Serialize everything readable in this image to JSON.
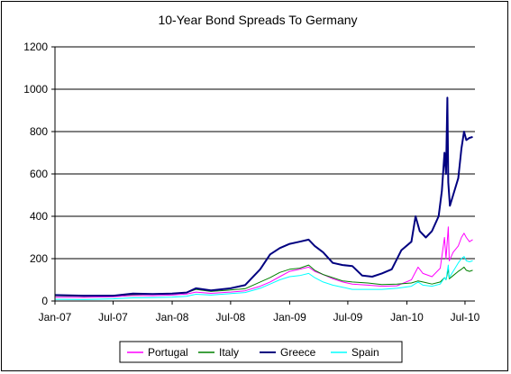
{
  "chart_data": {
    "type": "line",
    "title": "10-Year Bond Spreads To Germany",
    "xlabel": "",
    "ylabel": "",
    "ylim": [
      0,
      1200
    ],
    "yticks": [
      "0",
      "200",
      "400",
      "600",
      "800",
      "1000",
      "1200"
    ],
    "x_ticks": [
      "Jan-07",
      "Jul-07",
      "Jan-08",
      "Jul-08",
      "Jan-09",
      "Jul-09",
      "Jan-10",
      "Jul-10"
    ],
    "x_range": [
      "2007-01-01",
      "2010-08-01"
    ],
    "grid": "horizontal",
    "legend_position": "bottom",
    "series": [
      {
        "name": "Portugal",
        "color": "#ff00ff",
        "points": [
          [
            "2007-01-01",
            18
          ],
          [
            "2007-04-01",
            17
          ],
          [
            "2007-07-01",
            20
          ],
          [
            "2007-09-01",
            26
          ],
          [
            "2007-11-01",
            25
          ],
          [
            "2008-01-01",
            28
          ],
          [
            "2008-02-15",
            33
          ],
          [
            "2008-03-15",
            42
          ],
          [
            "2008-05-01",
            36
          ],
          [
            "2008-07-01",
            42
          ],
          [
            "2008-08-15",
            48
          ],
          [
            "2008-10-01",
            70
          ],
          [
            "2008-11-01",
            90
          ],
          [
            "2008-12-01",
            115
          ],
          [
            "2009-01-01",
            140
          ],
          [
            "2009-02-01",
            150
          ],
          [
            "2009-03-01",
            160
          ],
          [
            "2009-03-20",
            140
          ],
          [
            "2009-04-15",
            125
          ],
          [
            "2009-05-15",
            105
          ],
          [
            "2009-06-15",
            90
          ],
          [
            "2009-07-15",
            80
          ],
          [
            "2009-09-01",
            75
          ],
          [
            "2009-10-15",
            70
          ],
          [
            "2009-12-01",
            72
          ],
          [
            "2010-01-15",
            100
          ],
          [
            "2010-02-05",
            160
          ],
          [
            "2010-02-20",
            130
          ],
          [
            "2010-03-20",
            115
          ],
          [
            "2010-04-15",
            155
          ],
          [
            "2010-04-28",
            300
          ],
          [
            "2010-05-03",
            200
          ],
          [
            "2010-05-10",
            350
          ],
          [
            "2010-05-13",
            190
          ],
          [
            "2010-05-25",
            230
          ],
          [
            "2010-06-10",
            260
          ],
          [
            "2010-06-20",
            300
          ],
          [
            "2010-06-28",
            320
          ],
          [
            "2010-07-05",
            300
          ],
          [
            "2010-07-15",
            280
          ],
          [
            "2010-07-25",
            290
          ]
        ]
      },
      {
        "name": "Italy",
        "color": "#008000",
        "points": [
          [
            "2007-01-01",
            25
          ],
          [
            "2007-04-01",
            22
          ],
          [
            "2007-07-01",
            25
          ],
          [
            "2007-09-01",
            30
          ],
          [
            "2007-11-01",
            32
          ],
          [
            "2008-01-01",
            35
          ],
          [
            "2008-02-15",
            40
          ],
          [
            "2008-03-15",
            55
          ],
          [
            "2008-05-01",
            45
          ],
          [
            "2008-07-01",
            52
          ],
          [
            "2008-08-15",
            58
          ],
          [
            "2008-10-01",
            90
          ],
          [
            "2008-11-01",
            110
          ],
          [
            "2008-12-01",
            135
          ],
          [
            "2009-01-01",
            150
          ],
          [
            "2009-02-01",
            155
          ],
          [
            "2009-03-01",
            170
          ],
          [
            "2009-03-20",
            145
          ],
          [
            "2009-04-15",
            125
          ],
          [
            "2009-05-15",
            110
          ],
          [
            "2009-06-15",
            95
          ],
          [
            "2009-07-15",
            90
          ],
          [
            "2009-09-01",
            85
          ],
          [
            "2009-10-15",
            78
          ],
          [
            "2009-12-01",
            80
          ],
          [
            "2010-01-15",
            85
          ],
          [
            "2010-02-05",
            95
          ],
          [
            "2010-02-20",
            90
          ],
          [
            "2010-03-20",
            80
          ],
          [
            "2010-04-15",
            90
          ],
          [
            "2010-04-28",
            110
          ],
          [
            "2010-05-03",
            100
          ],
          [
            "2010-05-10",
            150
          ],
          [
            "2010-05-13",
            105
          ],
          [
            "2010-05-25",
            120
          ],
          [
            "2010-06-10",
            140
          ],
          [
            "2010-06-20",
            150
          ],
          [
            "2010-06-28",
            160
          ],
          [
            "2010-07-05",
            145
          ],
          [
            "2010-07-15",
            140
          ],
          [
            "2010-07-25",
            145
          ]
        ]
      },
      {
        "name": "Greece",
        "color": "#000080",
        "points": [
          [
            "2007-01-01",
            28
          ],
          [
            "2007-04-01",
            25
          ],
          [
            "2007-07-01",
            25
          ],
          [
            "2007-09-01",
            35
          ],
          [
            "2007-11-01",
            33
          ],
          [
            "2008-01-01",
            35
          ],
          [
            "2008-02-15",
            40
          ],
          [
            "2008-03-15",
            60
          ],
          [
            "2008-05-01",
            50
          ],
          [
            "2008-07-01",
            60
          ],
          [
            "2008-08-15",
            75
          ],
          [
            "2008-10-01",
            150
          ],
          [
            "2008-11-01",
            220
          ],
          [
            "2008-12-01",
            250
          ],
          [
            "2009-01-01",
            270
          ],
          [
            "2009-02-01",
            280
          ],
          [
            "2009-03-01",
            290
          ],
          [
            "2009-03-20",
            260
          ],
          [
            "2009-04-15",
            230
          ],
          [
            "2009-05-15",
            180
          ],
          [
            "2009-06-15",
            170
          ],
          [
            "2009-07-15",
            165
          ],
          [
            "2009-08-15",
            120
          ],
          [
            "2009-09-15",
            115
          ],
          [
            "2009-10-15",
            130
          ],
          [
            "2009-11-15",
            150
          ],
          [
            "2009-12-15",
            240
          ],
          [
            "2010-01-15",
            280
          ],
          [
            "2010-01-28",
            400
          ],
          [
            "2010-02-10",
            330
          ],
          [
            "2010-03-01",
            300
          ],
          [
            "2010-03-20",
            330
          ],
          [
            "2010-04-10",
            400
          ],
          [
            "2010-04-20",
            520
          ],
          [
            "2010-04-28",
            700
          ],
          [
            "2010-05-03",
            600
          ],
          [
            "2010-05-07",
            960
          ],
          [
            "2010-05-10",
            560
          ],
          [
            "2010-05-15",
            450
          ],
          [
            "2010-05-25",
            500
          ],
          [
            "2010-06-10",
            580
          ],
          [
            "2010-06-20",
            720
          ],
          [
            "2010-06-28",
            800
          ],
          [
            "2010-07-05",
            760
          ],
          [
            "2010-07-15",
            770
          ],
          [
            "2010-07-25",
            775
          ]
        ]
      },
      {
        "name": "Spain",
        "color": "#00ffff",
        "points": [
          [
            "2007-01-01",
            8
          ],
          [
            "2007-04-01",
            7
          ],
          [
            "2007-07-01",
            10
          ],
          [
            "2007-09-01",
            15
          ],
          [
            "2007-11-01",
            16
          ],
          [
            "2008-01-01",
            18
          ],
          [
            "2008-02-15",
            22
          ],
          [
            "2008-03-15",
            32
          ],
          [
            "2008-05-01",
            28
          ],
          [
            "2008-07-01",
            35
          ],
          [
            "2008-08-15",
            40
          ],
          [
            "2008-10-01",
            60
          ],
          [
            "2008-11-01",
            80
          ],
          [
            "2008-12-01",
            100
          ],
          [
            "2009-01-01",
            115
          ],
          [
            "2009-02-01",
            120
          ],
          [
            "2009-03-01",
            130
          ],
          [
            "2009-03-20",
            110
          ],
          [
            "2009-04-15",
            90
          ],
          [
            "2009-05-15",
            75
          ],
          [
            "2009-06-15",
            65
          ],
          [
            "2009-07-15",
            55
          ],
          [
            "2009-09-01",
            55
          ],
          [
            "2009-10-15",
            55
          ],
          [
            "2009-12-01",
            60
          ],
          [
            "2010-01-15",
            70
          ],
          [
            "2010-02-05",
            90
          ],
          [
            "2010-02-20",
            75
          ],
          [
            "2010-03-20",
            70
          ],
          [
            "2010-04-15",
            80
          ],
          [
            "2010-04-28",
            110
          ],
          [
            "2010-05-03",
            100
          ],
          [
            "2010-05-10",
            170
          ],
          [
            "2010-05-13",
            110
          ],
          [
            "2010-05-25",
            140
          ],
          [
            "2010-06-10",
            180
          ],
          [
            "2010-06-20",
            200
          ],
          [
            "2010-06-28",
            210
          ],
          [
            "2010-07-05",
            190
          ],
          [
            "2010-07-15",
            185
          ],
          [
            "2010-07-25",
            190
          ]
        ]
      }
    ]
  }
}
